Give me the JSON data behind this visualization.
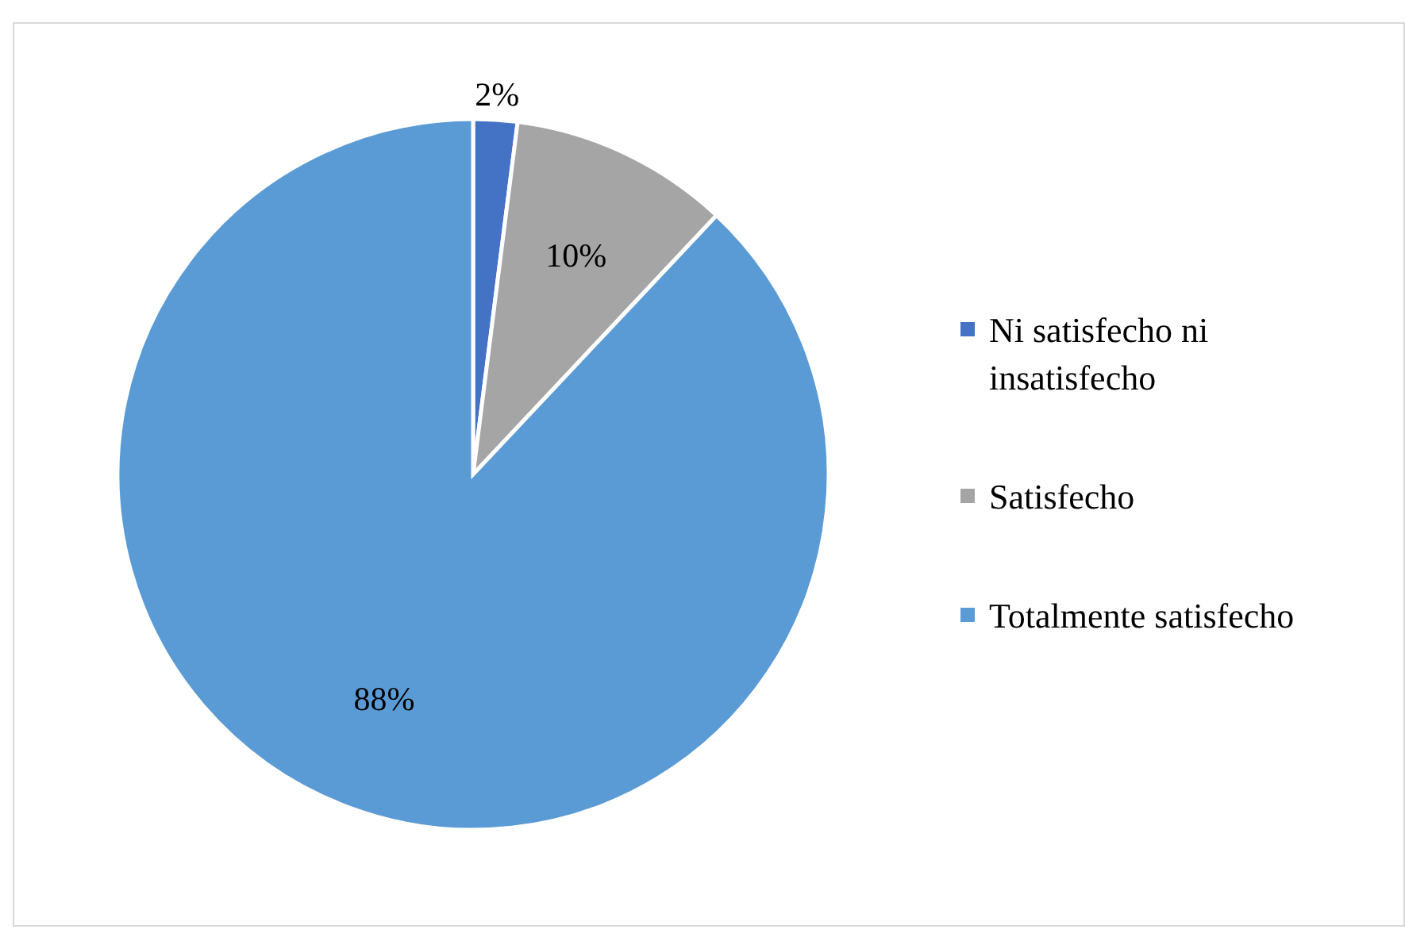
{
  "chart_data": {
    "type": "pie",
    "categories": [
      "Ni satisfecho ni insatisfecho",
      "Satisfecho",
      "Totalmente satisfecho"
    ],
    "values": [
      2,
      10,
      88
    ],
    "colors": [
      "#4472c4",
      "#a5a5a5",
      "#5b9bd5"
    ],
    "value_labels": [
      "2%",
      "10%",
      "88%"
    ],
    "legend": "right"
  }
}
